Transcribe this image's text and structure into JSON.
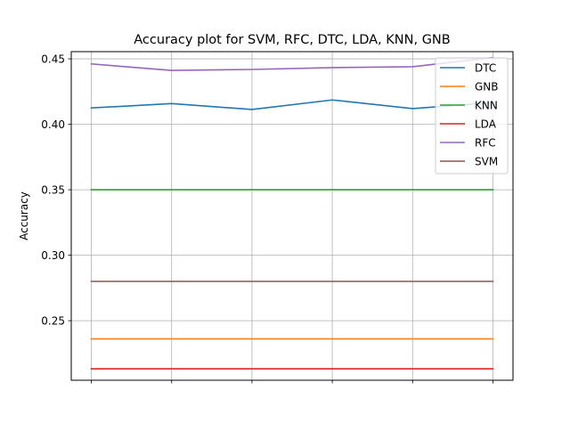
{
  "chart_data": {
    "type": "line",
    "title": "Accuracy plot  for SVM, RFC, DTC, LDA, KNN, GNB",
    "xlabel": "",
    "ylabel": "Accuracy",
    "x": [
      1,
      2,
      3,
      4,
      5,
      6
    ],
    "xlim": [
      0.75,
      6.25
    ],
    "ylim": [
      0.2045,
      0.4555
    ],
    "yticks": [
      0.25,
      0.3,
      0.35,
      0.4,
      0.45
    ],
    "ytick_labels": [
      "0.25",
      "0.30",
      "0.35",
      "0.40",
      "0.45"
    ],
    "xtick_labels": [
      "",
      "",
      "",
      "",
      "",
      ""
    ],
    "grid": true,
    "legend_position": "top-right",
    "series": [
      {
        "name": "DTC",
        "color": "#1f77b4",
        "values": [
          0.4125,
          0.4158,
          0.4113,
          0.4186,
          0.412,
          0.4166
        ]
      },
      {
        "name": "GNB",
        "color": "#ff7f0e",
        "values": [
          0.2361,
          0.2361,
          0.2361,
          0.2361,
          0.2361,
          0.2361
        ]
      },
      {
        "name": "KNN",
        "color": "#2ca02c",
        "values": [
          0.35,
          0.35,
          0.35,
          0.35,
          0.35,
          0.35
        ]
      },
      {
        "name": "LDA",
        "color": "#d62728",
        "values": [
          0.2132,
          0.2132,
          0.2132,
          0.2132,
          0.2132,
          0.2132
        ]
      },
      {
        "name": "RFC",
        "color": "#9467bd",
        "values": [
          0.4461,
          0.4412,
          0.4419,
          0.4433,
          0.444,
          0.451
        ]
      },
      {
        "name": "SVM",
        "color": "#8c564b",
        "values": [
          0.28,
          0.28,
          0.28,
          0.28,
          0.28,
          0.28
        ]
      }
    ]
  }
}
